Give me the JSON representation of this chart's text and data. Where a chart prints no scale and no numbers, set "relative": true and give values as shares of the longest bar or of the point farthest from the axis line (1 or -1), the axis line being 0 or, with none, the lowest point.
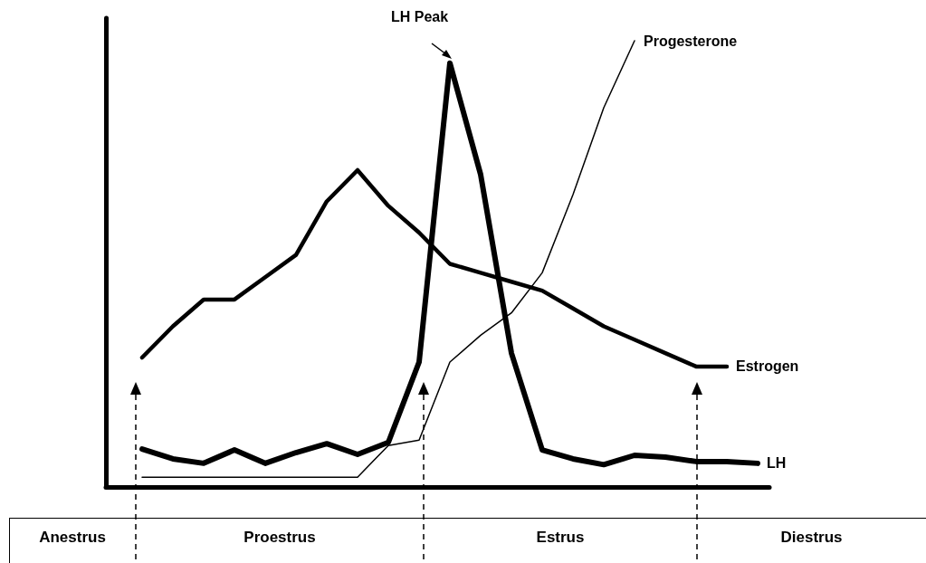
{
  "chart_data": {
    "type": "line",
    "relative": true,
    "legend": false,
    "grid": false,
    "line_style": "solid",
    "categories": [
      null,
      null,
      null,
      null,
      null,
      null,
      null,
      null,
      null,
      null,
      null,
      null,
      null,
      null,
      null,
      null,
      null,
      null,
      null,
      null,
      null
    ],
    "series": [
      {
        "name": "Estrogen",
        "color": "#000000",
        "values": [
          0.29,
          0.36,
          0.42,
          0.42,
          0.47,
          0.52,
          0.64,
          0.71,
          0.63,
          0.57,
          0.5,
          0.48,
          0.46,
          0.44,
          0.4,
          0.36,
          0.33,
          0.3,
          0.27,
          0.27,
          null
        ]
      },
      {
        "name": "LH",
        "color": "#000000",
        "values": [
          0.085,
          0.063,
          0.053,
          0.083,
          0.053,
          0.077,
          0.097,
          0.073,
          0.1,
          0.28,
          0.95,
          0.7,
          0.3,
          0.083,
          0.063,
          0.05,
          0.071,
          0.067,
          0.057,
          0.057,
          0.053
        ]
      },
      {
        "name": "Progesterone",
        "color": "#000000",
        "values": [
          0.022,
          0.022,
          0.022,
          0.022,
          0.022,
          0.022,
          0.022,
          0.022,
          0.093,
          0.105,
          0.28,
          0.34,
          0.39,
          0.48,
          0.655,
          0.85,
          1.0,
          null,
          null,
          null,
          null
        ]
      }
    ],
    "annotations": [
      "LH Peak",
      "Anestrus",
      "Proestrus",
      "Estrus",
      "Diestrus"
    ]
  }
}
